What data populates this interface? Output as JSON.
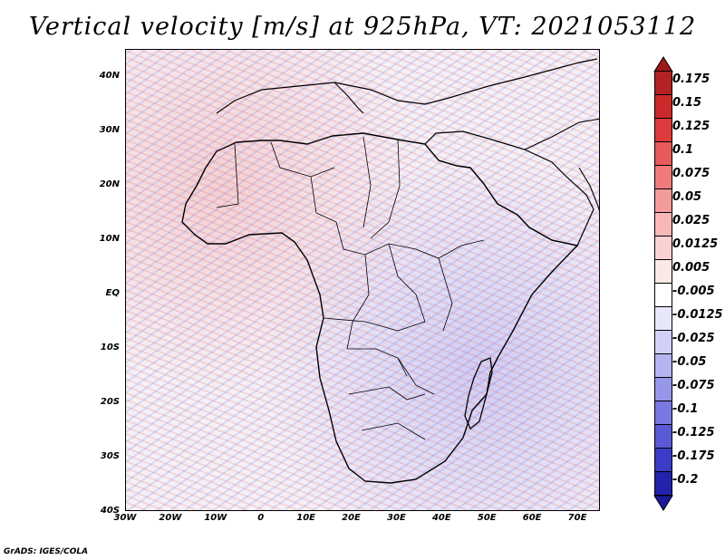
{
  "title": "Vertical velocity [m/s] at 925hPa, VT: 2021053112",
  "footer": "GrADS: IGES/COLA",
  "map": {
    "lat_range": [
      -40,
      45
    ],
    "lon_range": [
      -30,
      75
    ],
    "lat_ticks": [
      {
        "value": 40,
        "label": "40N"
      },
      {
        "value": 30,
        "label": "30N"
      },
      {
        "value": 20,
        "label": "20N"
      },
      {
        "value": 10,
        "label": "10N"
      },
      {
        "value": 0,
        "label": "EQ"
      },
      {
        "value": -10,
        "label": "10S"
      },
      {
        "value": -20,
        "label": "20S"
      },
      {
        "value": -30,
        "label": "30S"
      },
      {
        "value": -40,
        "label": "40S"
      }
    ],
    "lon_ticks": [
      {
        "value": -30,
        "label": "30W"
      },
      {
        "value": -20,
        "label": "20W"
      },
      {
        "value": -10,
        "label": "10W"
      },
      {
        "value": 0,
        "label": "0"
      },
      {
        "value": 10,
        "label": "10E"
      },
      {
        "value": 20,
        "label": "20E"
      },
      {
        "value": 30,
        "label": "30E"
      },
      {
        "value": 40,
        "label": "40E"
      },
      {
        "value": 50,
        "label": "50E"
      },
      {
        "value": 60,
        "label": "60E"
      },
      {
        "value": 70,
        "label": "70E"
      }
    ],
    "outline_color": "#000000"
  },
  "colorbar": {
    "levels": [
      {
        "label": "0.175",
        "color": "#b22222"
      },
      {
        "label": "0.15",
        "color": "#cc2a2a"
      },
      {
        "label": "0.125",
        "color": "#dd3b3b"
      },
      {
        "label": "0.1",
        "color": "#e65a5a"
      },
      {
        "label": "0.075",
        "color": "#ee7a7a"
      },
      {
        "label": "0.05",
        "color": "#f39a9a"
      },
      {
        "label": "0.025",
        "color": "#f8b8b8"
      },
      {
        "label": "0.0125",
        "color": "#fbd2d2"
      },
      {
        "label": "0.005",
        "color": "#fde8e8"
      },
      {
        "label": "-0.005",
        "color": "#ffffff"
      },
      {
        "label": "-0.0125",
        "color": "#e8e8fc"
      },
      {
        "label": "-0.025",
        "color": "#d0d0f8"
      },
      {
        "label": "-0.05",
        "color": "#b4b4f2"
      },
      {
        "label": "-0.075",
        "color": "#9696ea"
      },
      {
        "label": "-0.1",
        "color": "#7878e0"
      },
      {
        "label": "-0.125",
        "color": "#5a5ad4"
      },
      {
        "label": "-0.175",
        "color": "#3c3cc6"
      },
      {
        "label": "-0.2",
        "color": "#2222aa"
      }
    ],
    "top_cap_color": "#a01818",
    "bottom_cap_color": "#1a1a9a"
  }
}
